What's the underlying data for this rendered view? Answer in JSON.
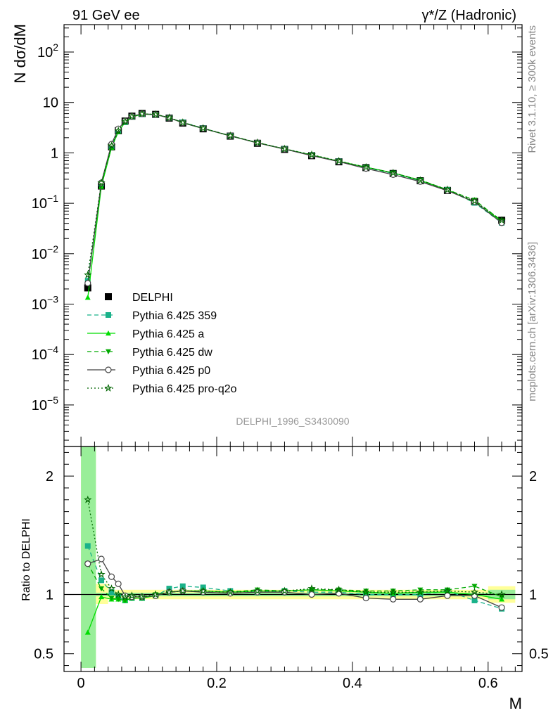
{
  "header": {
    "left_label": "91 GeV ee",
    "right_label": "γ*/Z (Hadronic)"
  },
  "side_texts": {
    "rivet": "Rivet 3.1.10, ≥ 300k events",
    "mcplots": "mcplots.cern.ch [arXiv:1306.3436]"
  },
  "analysis_id": "DELPHI_1996_S3430090",
  "chart_data": [
    {
      "type": "line",
      "panel": "main",
      "ylabel": "N dσ/dM",
      "xlabel": "M",
      "yscale": "log",
      "ylim": [
        1.5e-06,
        350
      ],
      "xlim": [
        -0.025,
        0.65
      ],
      "ytick_labels": [
        {
          "value": 100,
          "label": "10",
          "exp": "2"
        },
        {
          "value": 10,
          "label": "10",
          "exp": ""
        },
        {
          "value": 1,
          "label": "1",
          "exp": ""
        },
        {
          "value": 0.1,
          "label": "10",
          "exp": "−1"
        },
        {
          "value": 0.01,
          "label": "10",
          "exp": "−2"
        },
        {
          "value": 0.001,
          "label": "10",
          "exp": "−3"
        },
        {
          "value": 0.0001,
          "label": "10",
          "exp": "−4"
        },
        {
          "value": 1e-05,
          "label": "10",
          "exp": "−5"
        }
      ],
      "legend_position": "lower-left",
      "x": [
        0.01,
        0.03,
        0.045,
        0.055,
        0.065,
        0.075,
        0.09,
        0.11,
        0.13,
        0.15,
        0.18,
        0.22,
        0.26,
        0.3,
        0.34,
        0.38,
        0.42,
        0.46,
        0.5,
        0.54,
        0.58,
        0.62
      ],
      "series": [
        {
          "name": "DELPHI",
          "style": "data",
          "color": "#000000",
          "marker": "square",
          "values": [
            0.0021,
            0.22,
            1.32,
            2.75,
            4.28,
            5.35,
            6.05,
            5.8,
            4.9,
            3.9,
            3.0,
            2.15,
            1.55,
            1.17,
            0.88,
            0.665,
            0.51,
            0.39,
            0.28,
            0.18,
            0.108,
            0.046
          ]
        },
        {
          "name": "Pythia 6.425 359",
          "color": "#1ab28a",
          "dash": "6,4",
          "marker": "square",
          "values": [
            0.0029,
            0.245,
            1.35,
            2.7,
            4.05,
            5.2,
            5.85,
            5.7,
            4.95,
            4.05,
            3.08,
            2.18,
            1.58,
            1.2,
            0.9,
            0.68,
            0.51,
            0.39,
            0.28,
            0.185,
            0.102,
            0.041
          ]
        },
        {
          "name": "Pythia 6.425 a",
          "color": "#00dd00",
          "dash": "",
          "marker": "triangle-up",
          "values": [
            0.00135,
            0.215,
            1.27,
            2.63,
            4.05,
            5.15,
            5.85,
            5.75,
            4.95,
            3.95,
            3.03,
            2.17,
            1.58,
            1.19,
            0.9,
            0.68,
            0.52,
            0.4,
            0.285,
            0.184,
            0.105,
            0.044
          ]
        },
        {
          "name": "Pythia 6.425 dw",
          "color": "#00aa00",
          "dash": "6,4",
          "marker": "triangle-down",
          "values": [
            0.0026,
            0.232,
            1.27,
            2.63,
            4.05,
            5.15,
            5.85,
            5.8,
            4.98,
            4.0,
            3.06,
            2.19,
            1.6,
            1.2,
            0.91,
            0.685,
            0.52,
            0.4,
            0.29,
            0.186,
            0.116,
            0.045
          ]
        },
        {
          "name": "Pythia 6.425 p0",
          "color": "#444444",
          "dash": "",
          "marker": "circle",
          "values": [
            0.0026,
            0.255,
            1.49,
            3.0,
            4.3,
            5.3,
            5.95,
            5.75,
            4.95,
            3.95,
            3.05,
            2.17,
            1.58,
            1.19,
            0.88,
            0.67,
            0.49,
            0.37,
            0.27,
            0.178,
            0.107,
            0.041
          ]
        },
        {
          "name": "Pythia 6.425 pro-q2o",
          "color": "#006600",
          "dash": "2,3",
          "marker": "star",
          "values": [
            0.0038,
            0.255,
            1.38,
            2.75,
            4.2,
            5.3,
            5.95,
            5.8,
            5.0,
            4.0,
            3.08,
            2.19,
            1.6,
            1.2,
            0.92,
            0.69,
            0.52,
            0.4,
            0.285,
            0.186,
            0.11,
            0.046
          ]
        }
      ]
    },
    {
      "type": "line",
      "panel": "ratio",
      "ylabel": "Ratio to DELPHI",
      "xlabel": "M",
      "ylim": [
        0.35,
        2.25
      ],
      "xlim": [
        -0.025,
        0.65
      ],
      "yticks": [
        0.5,
        1,
        2
      ],
      "ytick_labels": [
        "0.5",
        "1",
        "2"
      ],
      "xticks": [
        0,
        0.2,
        0.4,
        0.6
      ],
      "xtick_labels": [
        "0",
        "0.2",
        "0.4",
        "0.6"
      ],
      "x": [
        0.01,
        0.03,
        0.045,
        0.055,
        0.065,
        0.075,
        0.09,
        0.11,
        0.13,
        0.15,
        0.18,
        0.22,
        0.26,
        0.3,
        0.34,
        0.38,
        0.42,
        0.46,
        0.5,
        0.54,
        0.58,
        0.62
      ],
      "band_yellow": [
        {
          "x0": 0.0,
          "x1": 0.022,
          "lo": 0.38,
          "hi": 2.25
        },
        {
          "x0": 0.022,
          "x1": 0.04,
          "lo": 0.92,
          "hi": 1.09
        },
        {
          "x0": 0.04,
          "x1": 0.6,
          "lo": 0.96,
          "hi": 1.04
        },
        {
          "x0": 0.6,
          "x1": 0.64,
          "lo": 0.93,
          "hi": 1.07
        }
      ],
      "band_green": [
        {
          "x0": 0.0,
          "x1": 0.022,
          "lo": 0.38,
          "hi": 2.25
        },
        {
          "x0": 0.022,
          "x1": 0.6,
          "lo": 0.985,
          "hi": 1.015
        },
        {
          "x0": 0.6,
          "x1": 0.64,
          "lo": 0.96,
          "hi": 1.04
        }
      ],
      "series": [
        {
          "name": "Pythia 6.425 359",
          "color": "#1ab28a",
          "dash": "6,4",
          "marker": "square",
          "values": [
            1.41,
            1.12,
            1.02,
            0.98,
            0.95,
            0.97,
            0.97,
            0.99,
            1.05,
            1.07,
            1.06,
            1.03,
            1.02,
            1.03,
            1.02,
            1.02,
            1.0,
            1.0,
            1.0,
            1.03,
            0.95,
            0.88
          ]
        },
        {
          "name": "Pythia 6.425 a",
          "color": "#00dd00",
          "dash": "",
          "marker": "triangle-up",
          "values": [
            0.68,
            0.98,
            0.96,
            0.96,
            0.95,
            0.97,
            0.97,
            0.99,
            1.02,
            1.03,
            1.03,
            1.02,
            1.03,
            1.03,
            1.04,
            1.03,
            1.02,
            1.01,
            1.02,
            1.02,
            1.0,
            0.96
          ]
        },
        {
          "name": "Pythia 6.425 dw",
          "color": "#00aa00",
          "dash": "6,4",
          "marker": "triangle-down",
          "values": [
            1.26,
            1.05,
            0.97,
            0.96,
            0.95,
            0.97,
            0.97,
            1.0,
            1.02,
            1.03,
            1.03,
            1.02,
            1.04,
            1.03,
            1.04,
            1.04,
            1.03,
            1.03,
            1.04,
            1.04,
            1.07,
            0.98
          ]
        },
        {
          "name": "Pythia 6.425 p0",
          "color": "#444444",
          "dash": "",
          "marker": "circle",
          "values": [
            1.26,
            1.3,
            1.15,
            1.09,
            0.99,
            0.98,
            0.98,
            0.99,
            1.02,
            1.03,
            1.02,
            1.01,
            1.02,
            1.02,
            1.0,
            1.01,
            0.97,
            0.96,
            0.96,
            0.99,
            0.99,
            0.89
          ]
        },
        {
          "name": "Pythia 6.425 pro-q2o",
          "color": "#006600",
          "dash": "2,3",
          "marker": "star",
          "values": [
            1.8,
            1.17,
            1.05,
            1.0,
            0.98,
            0.99,
            0.98,
            1.0,
            1.02,
            1.03,
            1.03,
            1.02,
            1.03,
            1.03,
            1.05,
            1.04,
            1.02,
            1.02,
            1.02,
            1.03,
            1.02,
            1.0
          ]
        }
      ]
    }
  ]
}
